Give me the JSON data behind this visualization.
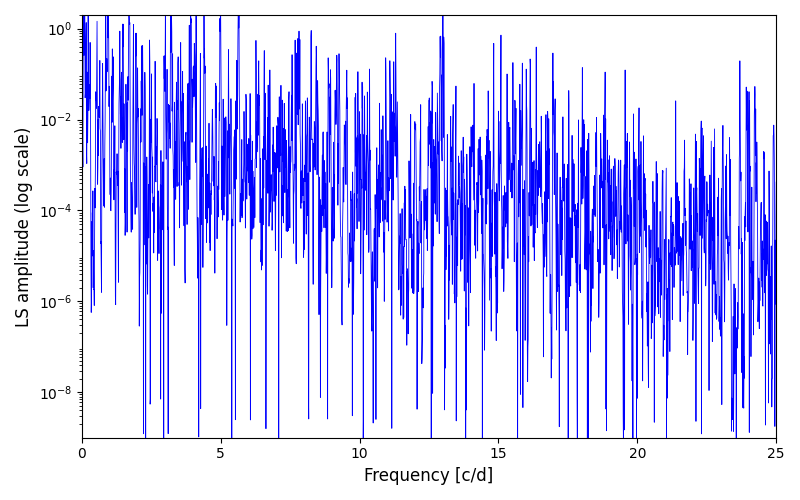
{
  "title": "",
  "xlabel": "Frequency [c/d]",
  "ylabel": "LS amplitude (log scale)",
  "xlim": [
    0,
    25
  ],
  "ylim_log": [
    1e-09,
    3.0
  ],
  "yticks": [
    1e-08,
    1e-06,
    0.0001,
    0.01,
    1.0
  ],
  "xticks": [
    0,
    5,
    10,
    15,
    20,
    25
  ],
  "line_color": "#0000ff",
  "line_width": 0.6,
  "figsize": [
    8.0,
    5.0
  ],
  "dpi": 100,
  "seed": 12345,
  "background_color": "#ffffff"
}
